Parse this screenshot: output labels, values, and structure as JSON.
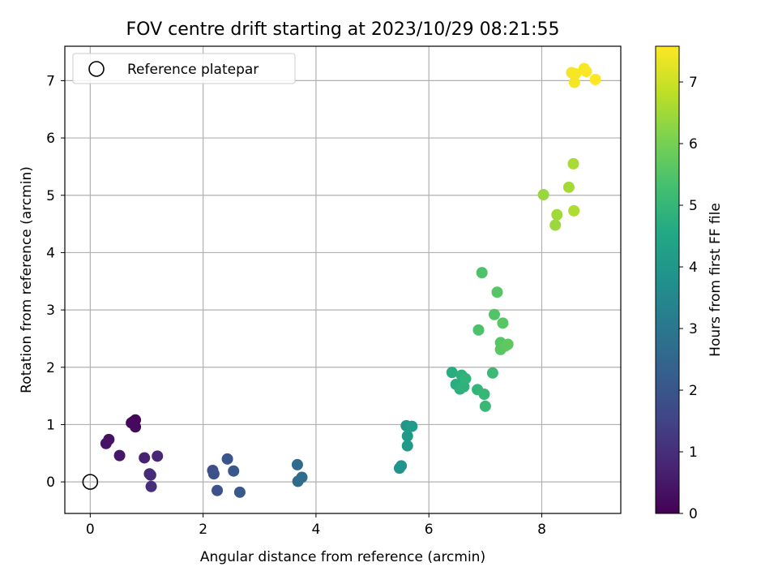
{
  "chart_data": {
    "type": "scatter",
    "title": "FOV centre drift starting at 2023/10/29 08:21:55",
    "xlabel": "Angular distance from reference (arcmin)",
    "ylabel": "Rotation from reference (arcmin)",
    "xlim": [
      -0.45,
      9.4
    ],
    "ylim": [
      -0.55,
      7.6
    ],
    "xticks": [
      0,
      2,
      4,
      6,
      8
    ],
    "yticks": [
      0,
      1,
      2,
      3,
      4,
      5,
      6,
      7
    ],
    "grid": true,
    "legend": {
      "placement": "top-left",
      "entries": [
        "Reference platepar"
      ]
    },
    "reference": {
      "x": 0,
      "y": 0
    },
    "colorbar": {
      "label": "Hours from first FF file",
      "range": [
        0,
        7.58
      ],
      "ticks": [
        0,
        1,
        2,
        3,
        4,
        5,
        6,
        7
      ],
      "colormap": "viridis"
    },
    "series": [
      {
        "points": [
          {
            "x": 0.76,
            "y": 1.05,
            "h": 0.05
          },
          {
            "x": 0.8,
            "y": 1.08,
            "h": 0.1
          },
          {
            "x": 0.73,
            "y": 1.03,
            "h": 0.15
          },
          {
            "x": 0.8,
            "y": 0.96,
            "h": 0.2
          },
          {
            "x": 0.33,
            "y": 0.74,
            "h": 0.35
          },
          {
            "x": 0.28,
            "y": 0.67,
            "h": 0.4
          },
          {
            "x": 0.52,
            "y": 0.46,
            "h": 0.5
          },
          {
            "x": 0.96,
            "y": 0.42,
            "h": 0.7
          },
          {
            "x": 1.19,
            "y": 0.45,
            "h": 0.8
          },
          {
            "x": 1.05,
            "y": 0.14,
            "h": 0.9
          },
          {
            "x": 1.07,
            "y": 0.12,
            "h": 0.95
          },
          {
            "x": 1.08,
            "y": -0.08,
            "h": 1.0
          },
          {
            "x": 2.17,
            "y": 0.2,
            "h": 1.8
          },
          {
            "x": 2.19,
            "y": 0.14,
            "h": 1.85
          },
          {
            "x": 2.25,
            "y": -0.15,
            "h": 1.9
          },
          {
            "x": 2.43,
            "y": 0.4,
            "h": 2.0
          },
          {
            "x": 2.54,
            "y": 0.19,
            "h": 2.05
          },
          {
            "x": 2.65,
            "y": -0.18,
            "h": 2.1
          },
          {
            "x": 3.67,
            "y": 0.3,
            "h": 2.6
          },
          {
            "x": 3.68,
            "y": 0.01,
            "h": 2.65
          },
          {
            "x": 3.75,
            "y": 0.08,
            "h": 2.7
          },
          {
            "x": 5.48,
            "y": 0.24,
            "h": 3.85
          },
          {
            "x": 5.51,
            "y": 0.28,
            "h": 3.9
          },
          {
            "x": 5.6,
            "y": 0.98,
            "h": 4.0
          },
          {
            "x": 5.62,
            "y": 0.8,
            "h": 4.05
          },
          {
            "x": 5.62,
            "y": 0.63,
            "h": 4.1
          },
          {
            "x": 5.7,
            "y": 0.97,
            "h": 4.15
          },
          {
            "x": 6.41,
            "y": 1.91,
            "h": 4.7
          },
          {
            "x": 6.48,
            "y": 1.7,
            "h": 4.75
          },
          {
            "x": 6.55,
            "y": 1.62,
            "h": 4.8
          },
          {
            "x": 6.58,
            "y": 1.86,
            "h": 4.82
          },
          {
            "x": 6.62,
            "y": 1.66,
            "h": 4.85
          },
          {
            "x": 6.65,
            "y": 1.8,
            "h": 4.9
          },
          {
            "x": 6.86,
            "y": 1.61,
            "h": 4.95
          },
          {
            "x": 6.98,
            "y": 1.53,
            "h": 5.0
          },
          {
            "x": 7.0,
            "y": 1.32,
            "h": 5.05
          },
          {
            "x": 7.13,
            "y": 1.9,
            "h": 5.1
          },
          {
            "x": 6.88,
            "y": 2.65,
            "h": 5.4
          },
          {
            "x": 6.94,
            "y": 3.65,
            "h": 5.45
          },
          {
            "x": 7.16,
            "y": 2.92,
            "h": 5.5
          },
          {
            "x": 7.21,
            "y": 3.31,
            "h": 5.55
          },
          {
            "x": 7.27,
            "y": 2.43,
            "h": 5.55
          },
          {
            "x": 7.27,
            "y": 2.31,
            "h": 5.6
          },
          {
            "x": 7.31,
            "y": 2.77,
            "h": 5.6
          },
          {
            "x": 7.35,
            "y": 2.37,
            "h": 5.65
          },
          {
            "x": 7.4,
            "y": 2.4,
            "h": 5.7
          },
          {
            "x": 8.03,
            "y": 5.01,
            "h": 6.4
          },
          {
            "x": 8.24,
            "y": 4.48,
            "h": 6.45
          },
          {
            "x": 8.27,
            "y": 4.66,
            "h": 6.5
          },
          {
            "x": 8.48,
            "y": 5.14,
            "h": 6.55
          },
          {
            "x": 8.56,
            "y": 5.55,
            "h": 6.6
          },
          {
            "x": 8.57,
            "y": 4.73,
            "h": 6.65
          },
          {
            "x": 8.53,
            "y": 7.14,
            "h": 7.45
          },
          {
            "x": 8.58,
            "y": 6.97,
            "h": 7.48
          },
          {
            "x": 8.6,
            "y": 7.12,
            "h": 7.5
          },
          {
            "x": 8.75,
            "y": 7.21,
            "h": 7.52
          },
          {
            "x": 8.79,
            "y": 7.16,
            "h": 7.54
          },
          {
            "x": 8.95,
            "y": 7.02,
            "h": 7.58
          }
        ]
      }
    ]
  }
}
